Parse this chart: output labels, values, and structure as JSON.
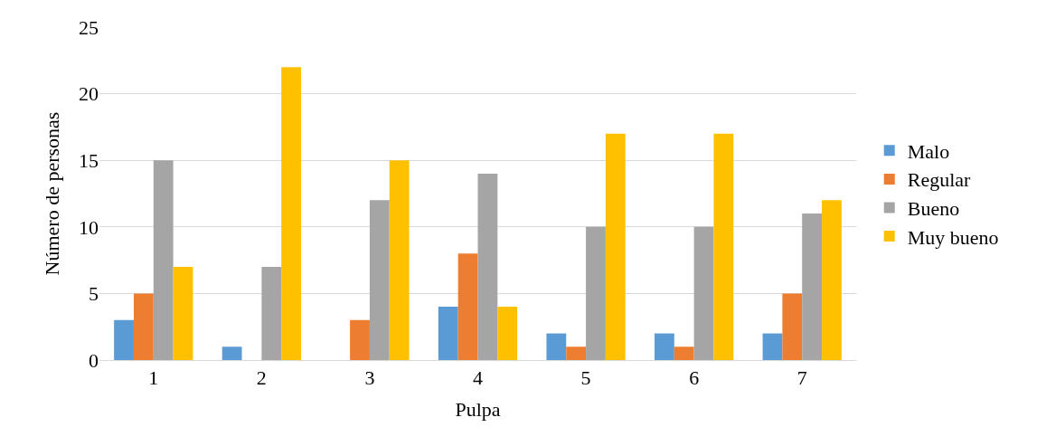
{
  "chart_data": {
    "type": "bar",
    "xlabel": "Pulpa",
    "ylabel": "Número de personas",
    "categories": [
      "1",
      "2",
      "3",
      "4",
      "5",
      "6",
      "7"
    ],
    "series": [
      {
        "name": "Malo",
        "color": "#5b9bd5",
        "values": [
          3,
          1,
          0,
          4,
          2,
          2,
          2
        ]
      },
      {
        "name": "Regular",
        "color": "#ed7d31",
        "values": [
          5,
          0,
          3,
          8,
          1,
          1,
          5
        ]
      },
      {
        "name": "Bueno",
        "color": "#a5a5a5",
        "values": [
          15,
          7,
          12,
          14,
          10,
          10,
          11
        ]
      },
      {
        "name": "Muy bueno",
        "color": "#ffc000",
        "values": [
          7,
          22,
          15,
          4,
          17,
          17,
          12
        ]
      }
    ],
    "ylim": [
      0,
      25
    ],
    "yticks": [
      0,
      5,
      10,
      15,
      20,
      25
    ],
    "grid": "y",
    "legend": "right"
  }
}
